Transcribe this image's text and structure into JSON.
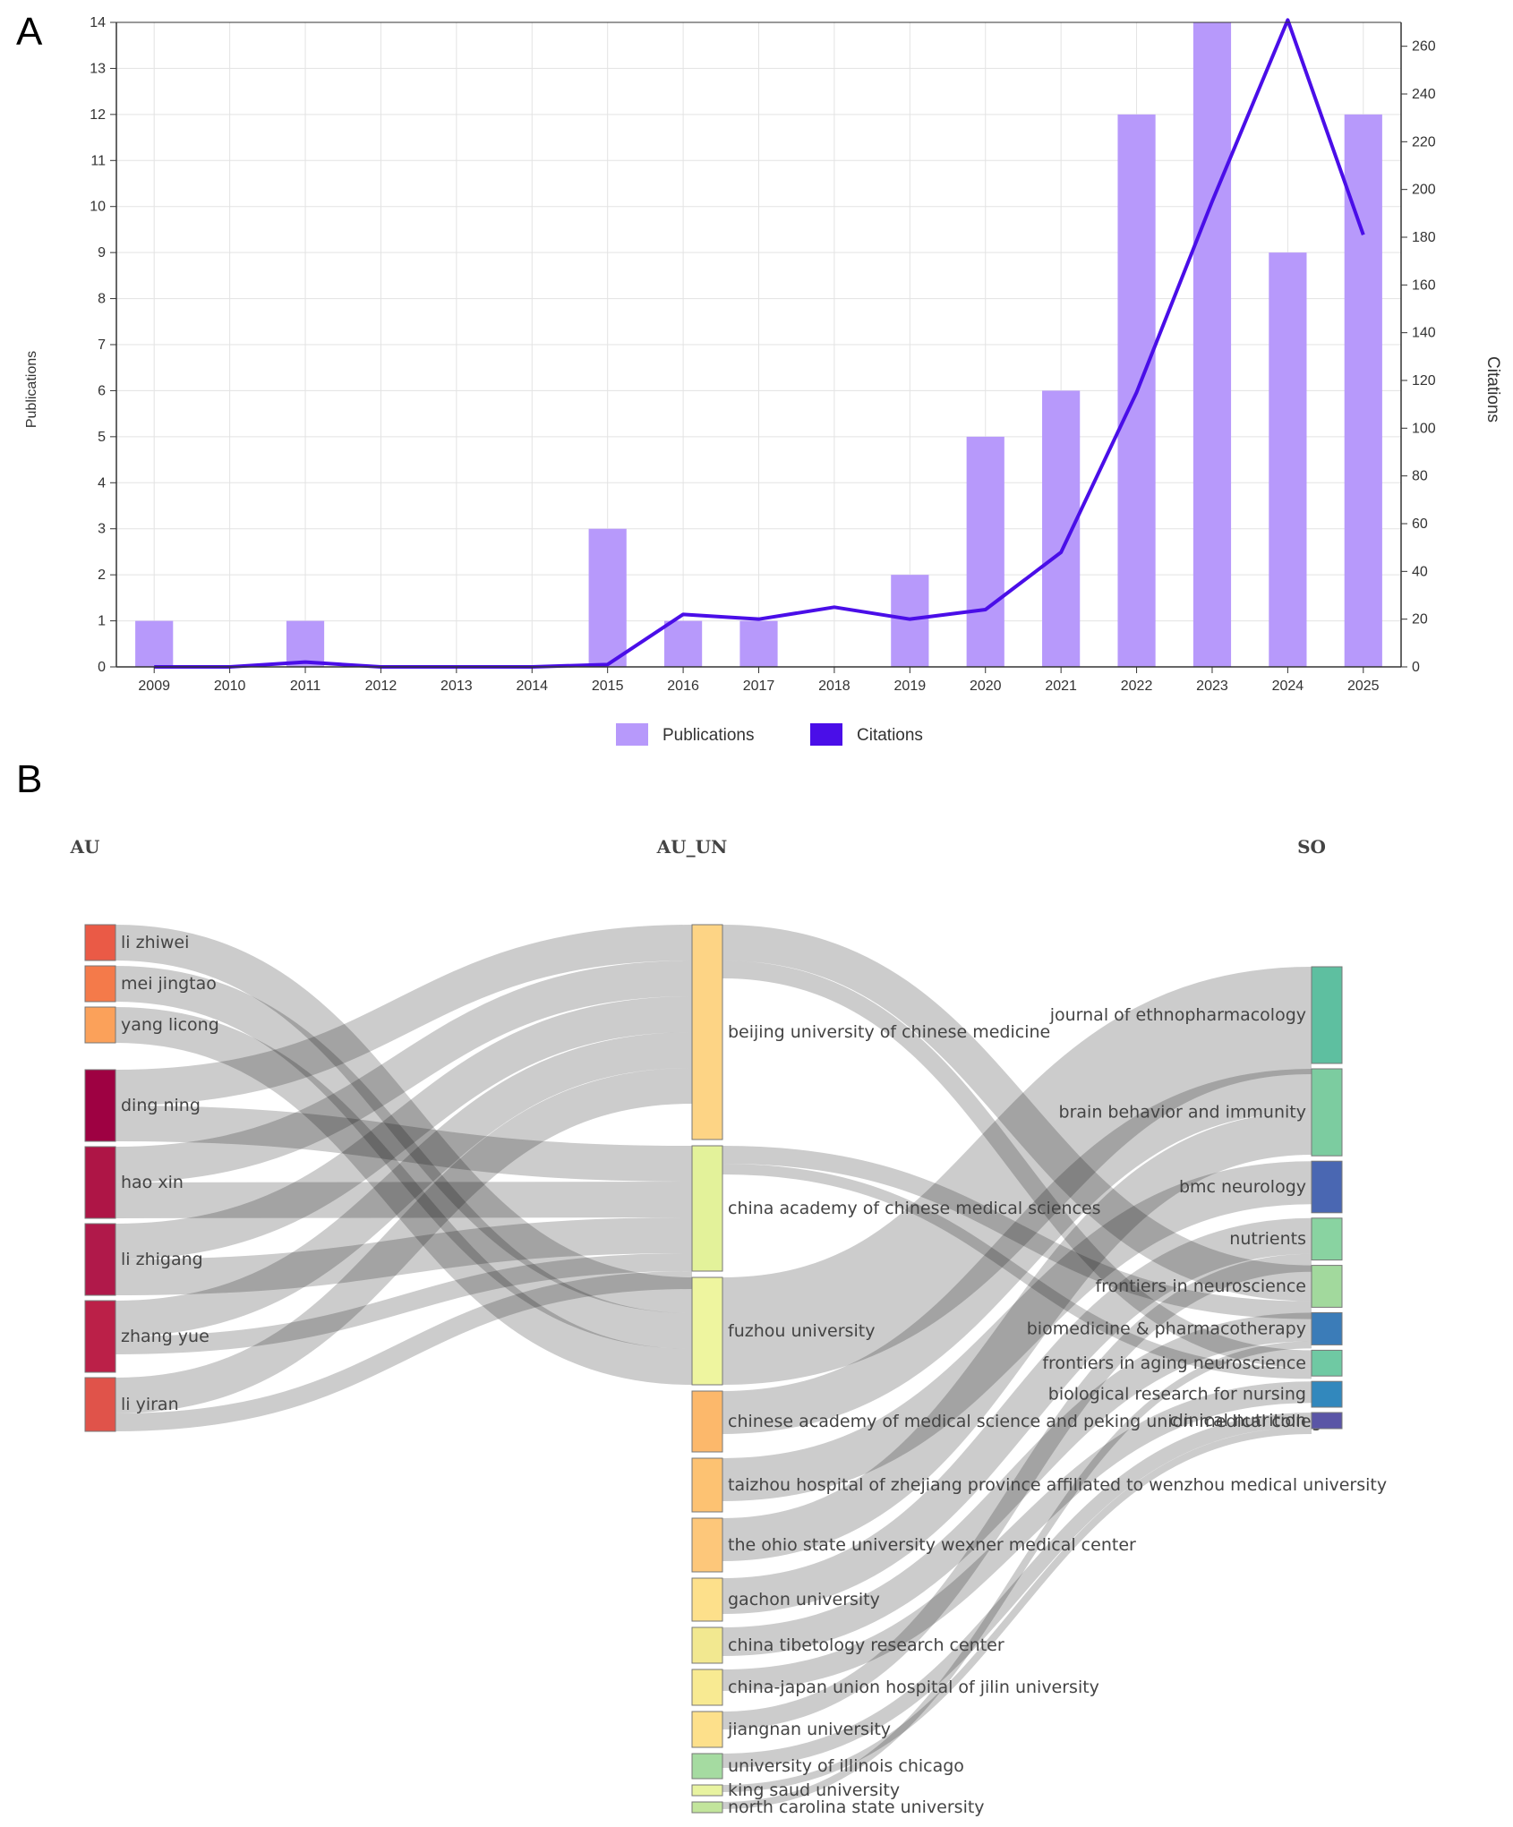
{
  "panels": {
    "a_label": "A",
    "b_label": "B"
  },
  "chart_data": [
    {
      "type": "bar+line",
      "categories": [
        "2009",
        "2010",
        "2011",
        "2012",
        "2013",
        "2014",
        "2015",
        "2016",
        "2017",
        "2018",
        "2019",
        "2020",
        "2021",
        "2022",
        "2023",
        "2024",
        "2025"
      ],
      "series": [
        {
          "name": "Publications",
          "type": "bar",
          "axis": "left",
          "color": "#b799fb",
          "values": [
            1,
            0,
            1,
            0,
            0,
            0,
            3,
            1,
            1,
            0,
            2,
            5,
            6,
            12,
            14,
            9,
            12
          ]
        },
        {
          "name": "Citations",
          "type": "line",
          "axis": "right",
          "color": "#4a0ee8",
          "values": [
            0,
            0,
            2,
            0,
            0,
            0,
            1,
            22,
            20,
            25,
            20,
            24,
            48,
            115,
            195,
            271,
            181
          ]
        }
      ],
      "ylabel": "Publications",
      "y2label": "Citations",
      "ylim": [
        0,
        14
      ],
      "y2lim": [
        0,
        270
      ],
      "y_ticks": [
        0,
        1,
        2,
        3,
        4,
        5,
        6,
        7,
        8,
        9,
        10,
        11,
        12,
        13,
        14
      ],
      "y2_ticks": [
        0,
        20,
        40,
        60,
        80,
        100,
        120,
        140,
        160,
        180,
        200,
        220,
        240,
        260
      ],
      "grid": true,
      "legend": "bottom-center"
    },
    {
      "type": "sankey",
      "columns": [
        "AU",
        "AU_UN",
        "SO"
      ],
      "nodes": {
        "AU": [
          {
            "name": "li zhiwei",
            "color": "#ea5a46",
            "value": 1
          },
          {
            "name": "mei jingtao",
            "color": "#f47a4a",
            "value": 1
          },
          {
            "name": "yang licong",
            "color": "#fba15a",
            "value": 1
          },
          {
            "name": "ding ning",
            "color": "#9e0142",
            "value": 2
          },
          {
            "name": "hao xin",
            "color": "#ae1546",
            "value": 2
          },
          {
            "name": "li zhigang",
            "color": "#b0194a",
            "value": 2
          },
          {
            "name": "zhang yue",
            "color": "#bb2048",
            "value": 2
          },
          {
            "name": "li yiran",
            "color": "#e0534a",
            "value": 1.5
          }
        ],
        "AU_UN": [
          {
            "name": "beijing university of chinese medicine",
            "color": "#fdd485",
            "value": 6
          },
          {
            "name": "china academy of chinese medical sciences",
            "color": "#e3f29a",
            "value": 3.5
          },
          {
            "name": "fuzhou university",
            "color": "#eef59f",
            "value": 3
          },
          {
            "name": "chinese academy of medical science and peking union medical college",
            "color": "#fcb86b",
            "value": 1.7
          },
          {
            "name": "taizhou hospital of zhejiang province affiliated to wenzhou medical university",
            "color": "#fdc272",
            "value": 1.5
          },
          {
            "name": "the ohio state university wexner medical center",
            "color": "#fdc77a",
            "value": 1.5
          },
          {
            "name": "gachon university",
            "color": "#fde08b",
            "value": 1.2
          },
          {
            "name": "china tibetology research center",
            "color": "#f2e890",
            "value": 1
          },
          {
            "name": "china-japan union hospital of jilin university",
            "color": "#f8ea92",
            "value": 1
          },
          {
            "name": "jiangnan university",
            "color": "#fde08b",
            "value": 1
          },
          {
            "name": "university of illinois chicago",
            "color": "#a5dba1",
            "value": 0.7
          },
          {
            "name": "king saud university",
            "color": "#e8f3a0",
            "value": 0.3
          },
          {
            "name": "north carolina state university",
            "color": "#c2e59c",
            "value": 0.3
          }
        ],
        "SO": [
          {
            "name": "journal of ethnopharmacology",
            "color": "#5ebfa0",
            "value": 3
          },
          {
            "name": "brain behavior and immunity",
            "color": "#7ccca0",
            "value": 2.7
          },
          {
            "name": "bmc neurology",
            "color": "#4a67b2",
            "value": 1.6
          },
          {
            "name": "nutrients",
            "color": "#89d3a1",
            "value": 1.3
          },
          {
            "name": "frontiers in neuroscience",
            "color": "#a2d99d",
            "value": 1.3
          },
          {
            "name": "biomedicine & pharmacotherapy",
            "color": "#3b7cb8",
            "value": 1
          },
          {
            "name": "frontiers in aging neuroscience",
            "color": "#6fc9a3",
            "value": 0.8
          },
          {
            "name": "biological research for nursing",
            "color": "#3288bd",
            "value": 0.8
          },
          {
            "name": "clinical nutrition",
            "color": "#5a55a6",
            "value": 0.5
          }
        ]
      },
      "links": [
        {
          "source": "li zhiwei",
          "target": "fuzhou university",
          "value": 1
        },
        {
          "source": "mei jingtao",
          "target": "fuzhou university",
          "value": 1
        },
        {
          "source": "yang licong",
          "target": "fuzhou university",
          "value": 1
        },
        {
          "source": "ding ning",
          "target": "beijing university of chinese medicine",
          "value": 1
        },
        {
          "source": "ding ning",
          "target": "china academy of chinese medical sciences",
          "value": 1
        },
        {
          "source": "hao xin",
          "target": "beijing university of chinese medicine",
          "value": 1
        },
        {
          "source": "hao xin",
          "target": "china academy of chinese medical sciences",
          "value": 1
        },
        {
          "source": "li zhigang",
          "target": "beijing university of chinese medicine",
          "value": 1
        },
        {
          "source": "li zhigang",
          "target": "china academy of chinese medical sciences",
          "value": 1
        },
        {
          "source": "zhang yue",
          "target": "beijing university of chinese medicine",
          "value": 1
        },
        {
          "source": "zhang yue",
          "target": "china academy of chinese medical sciences",
          "value": 0.5
        },
        {
          "source": "li yiran",
          "target": "beijing university of chinese medicine",
          "value": 1
        },
        {
          "source": "li yiran",
          "target": "china academy of chinese medical sciences",
          "value": 0.5
        },
        {
          "source": "beijing university of chinese medicine",
          "target": "frontiers in neuroscience",
          "value": 1
        },
        {
          "source": "beijing university of chinese medicine",
          "target": "frontiers in aging neuroscience",
          "value": 0.5
        },
        {
          "source": "china academy of chinese medical sciences",
          "target": "frontiers in neuroscience",
          "value": 0.5
        },
        {
          "source": "china academy of chinese medical sciences",
          "target": "frontiers in aging neuroscience",
          "value": 0.3
        },
        {
          "source": "fuzhou university",
          "target": "journal of ethnopharmacology",
          "value": 3
        },
        {
          "source": "chinese academy of medical science and peking union medical college",
          "target": "brain behavior and immunity",
          "value": 1.2
        },
        {
          "source": "taizhou hospital of zhejiang province affiliated to wenzhou medical university",
          "target": "bmc neurology",
          "value": 1.2
        },
        {
          "source": "the ohio state university wexner medical center",
          "target": "brain behavior and immunity",
          "value": 1.2
        },
        {
          "source": "gachon university",
          "target": "nutrients",
          "value": 1
        },
        {
          "source": "china tibetology research center",
          "target": "biomedicine & pharmacotherapy",
          "value": 0.8
        },
        {
          "source": "china-japan union hospital of jilin university",
          "target": "biological research for nursing",
          "value": 0.6
        },
        {
          "source": "jiangnan university",
          "target": "nutrients",
          "value": 0.5
        },
        {
          "source": "university of illinois chicago",
          "target": "clinical nutrition",
          "value": 0.4
        },
        {
          "source": "king saud university",
          "target": "clinical nutrition",
          "value": 0.2
        },
        {
          "source": "north carolina state university",
          "target": "biomedicine & pharmacotherapy",
          "value": 0.2
        }
      ]
    }
  ]
}
